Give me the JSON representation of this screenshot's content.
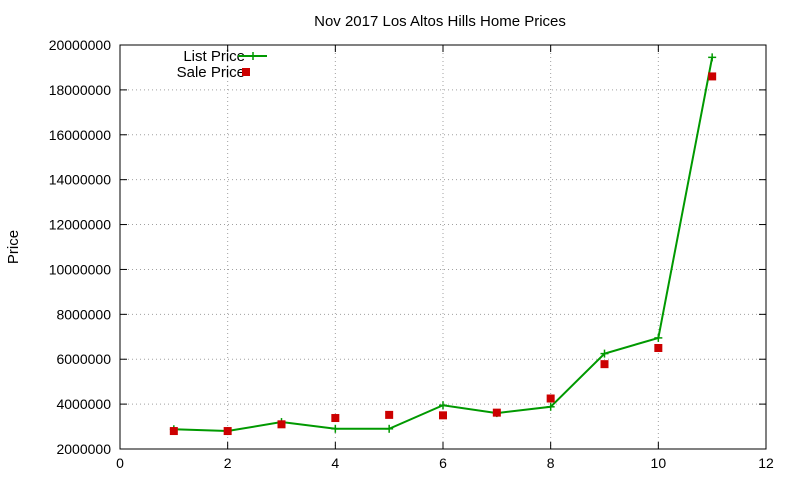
{
  "chart_data": {
    "type": "line",
    "title": "Nov 2017 Los Altos Hills Home Prices",
    "xlabel": "",
    "ylabel": "Price",
    "xlim": [
      0,
      12
    ],
    "ylim": [
      2000000,
      20000000
    ],
    "x_ticks": [
      0,
      2,
      4,
      6,
      8,
      10,
      12
    ],
    "x_tick_labels": [
      "0",
      "2",
      "4",
      "6",
      "8",
      "10",
      "12"
    ],
    "y_ticks": [
      2000000,
      4000000,
      6000000,
      8000000,
      10000000,
      12000000,
      14000000,
      16000000,
      18000000,
      20000000
    ],
    "y_tick_labels": [
      "2000000",
      "4000000",
      "6000000",
      "8000000",
      "10000000",
      "12000000",
      "14000000",
      "16000000",
      "18000000",
      "20000000"
    ],
    "grid": true,
    "legend_position": "top-left",
    "series": [
      {
        "name": "List Price",
        "style": "line-with-plus-markers",
        "color": "#009900",
        "x": [
          1,
          2,
          3,
          4,
          5,
          6,
          7,
          8,
          9,
          10,
          11
        ],
        "y": [
          2880000,
          2800000,
          3200000,
          2900000,
          2900000,
          3950000,
          3600000,
          3880000,
          6250000,
          6950000,
          19450000
        ]
      },
      {
        "name": "Sale Price",
        "style": "square-markers",
        "color": "#cc0000",
        "x": [
          1,
          2,
          3,
          4,
          5,
          6,
          7,
          8,
          9,
          10,
          11
        ],
        "y": [
          2800000,
          2800000,
          3100000,
          3380000,
          3520000,
          3500000,
          3620000,
          4250000,
          5780000,
          6500000,
          18600000
        ]
      }
    ]
  }
}
